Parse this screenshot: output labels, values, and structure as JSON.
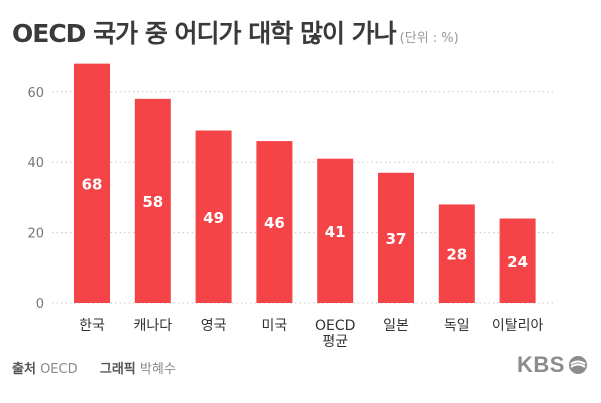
{
  "header": {
    "title": "OECD 국가 중 어디가 대학 많이 가나",
    "unit": "(단위 : %)"
  },
  "footer": {
    "source_key": "출처",
    "source_value": "OECD",
    "graphic_key": "그래픽",
    "graphic_value": "박혜수"
  },
  "logo": {
    "text": "KBS"
  },
  "colors": {
    "bar": "#f44448",
    "bar_label": "#ffffff",
    "axis_text": "#777777",
    "category_text": "#333333",
    "grid": "#c8c8c8",
    "title": "#3a3a3a"
  },
  "chart_data": {
    "type": "bar",
    "title": "OECD 국가 중 어디가 대학 많이 가나",
    "xlabel": "",
    "ylabel": "",
    "unit": "%",
    "categories": [
      [
        "한국"
      ],
      [
        "캐나다"
      ],
      [
        "영국"
      ],
      [
        "미국"
      ],
      [
        "OECD",
        "평균"
      ],
      [
        "일본"
      ],
      [
        "독일"
      ],
      [
        "이탈리아"
      ]
    ],
    "values": [
      68,
      58,
      49,
      46,
      41,
      37,
      28,
      24
    ],
    "ylim": [
      0,
      70
    ],
    "yticks": [
      0,
      20,
      40,
      60
    ],
    "grid": true,
    "data_labels": true
  }
}
